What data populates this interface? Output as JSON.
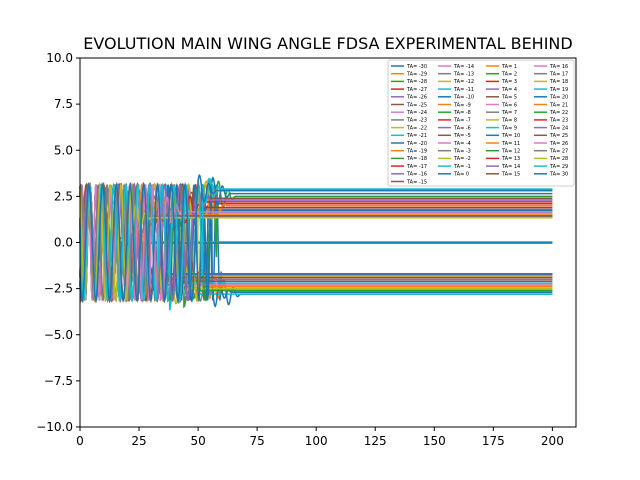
{
  "chart_data": {
    "type": "line",
    "title": "EVOLUTION MAIN WING ANGLE FDSA EXPERIMENTAL BEHIND",
    "xlabel": "",
    "ylabel": "",
    "xlim": [
      0,
      210
    ],
    "ylim": [
      -10,
      10
    ],
    "xticks": [
      0,
      25,
      50,
      75,
      100,
      125,
      150,
      175,
      200
    ],
    "yticks": [
      -10.0,
      -7.5,
      -5.0,
      -2.5,
      0.0,
      2.5,
      5.0,
      7.5,
      10.0
    ],
    "ytick_labels": [
      "−10.0",
      "−7.5",
      "−5.0",
      "−2.5",
      "0.0",
      "2.5",
      "5.0",
      "7.5",
      "10.0"
    ],
    "grid": false,
    "legend_position": "top-right",
    "legend_columns": 4,
    "legend_entries": [
      "TA= -30",
      "TA= -29",
      "TA= -28",
      "TA= -27",
      "TA= -26",
      "TA= -25",
      "TA= -24",
      "TA= -23",
      "TA= -22",
      "TA= -21",
      "TA= -20",
      "TA= -19",
      "TA= -18",
      "TA= -17",
      "TA= -16",
      "TA= -15",
      "TA= -14",
      "TA= -13",
      "TA= -12",
      "TA= -11",
      "TA= -10",
      "TA= -9",
      "TA= -8",
      "TA= -7",
      "TA= -6",
      "TA= -5",
      "TA= -4",
      "TA= -3",
      "TA= -2",
      "TA= -1",
      "TA= 0",
      "TA= 1",
      "TA= 2",
      "TA= 3",
      "TA= 4",
      "TA= 5",
      "TA= 6",
      "TA= 7",
      "TA= 8",
      "TA= 9",
      "TA= 10",
      "TA= 11",
      "TA= 12",
      "TA= 13",
      "TA= 14",
      "TA= 15",
      "TA= 16",
      "TA= 17",
      "TA= 18",
      "TA= 19",
      "TA= 20",
      "TA= 21",
      "TA= 22",
      "TA= 23",
      "TA= 24",
      "TA= 25",
      "TA= 26",
      "TA= 27",
      "TA= 28",
      "TA= 29",
      "TA= 30"
    ],
    "series_steady_state_y": [
      -2.8,
      -2.5,
      -2.3,
      -1.7,
      -1.8,
      -2.0,
      -2.2,
      -2.6,
      -1.8,
      -2.8,
      -2.7,
      -2.4,
      -2.6,
      -1.9,
      -1.75,
      -2.1,
      -2.3,
      -2.0,
      -2.5,
      -2.2,
      -1.7,
      0.0,
      0.02,
      -0.02,
      0.01,
      -0.01,
      0.03,
      -0.03,
      0.0,
      0.02,
      -0.02,
      1.7,
      2.5,
      2.1,
      2.3,
      1.4,
      1.35,
      1.8,
      1.38,
      2.85,
      1.75,
      2.0,
      1.45,
      2.2,
      1.4,
      2.4,
      1.38,
      1.42,
      2.8,
      1.6,
      2.65,
      1.5,
      1.36,
      1.9,
      2.3,
      1.44,
      1.65,
      1.37,
      1.34,
      2.9,
      2.82
    ],
    "series_settle_x": [
      60,
      55,
      50,
      45,
      40,
      35,
      52,
      48,
      42,
      38,
      56,
      46,
      44,
      36,
      30,
      28,
      34,
      32,
      40,
      42,
      26,
      22,
      20,
      18,
      16,
      14,
      24,
      12,
      10,
      8,
      6,
      28,
      58,
      50,
      44,
      38,
      34,
      30,
      26,
      52,
      48,
      54,
      40,
      46,
      36,
      42,
      32,
      24,
      50,
      38,
      56,
      34,
      28,
      44,
      48,
      30,
      36,
      26,
      22,
      52,
      50
    ],
    "osc_amplitude": 3.14,
    "x_end": 200,
    "colors": [
      "#1f77b4",
      "#ff7f0e",
      "#2ca02c",
      "#d62728",
      "#9467bd",
      "#8c564b",
      "#e377c2",
      "#7f7f7f",
      "#bcbd22",
      "#17becf"
    ]
  }
}
